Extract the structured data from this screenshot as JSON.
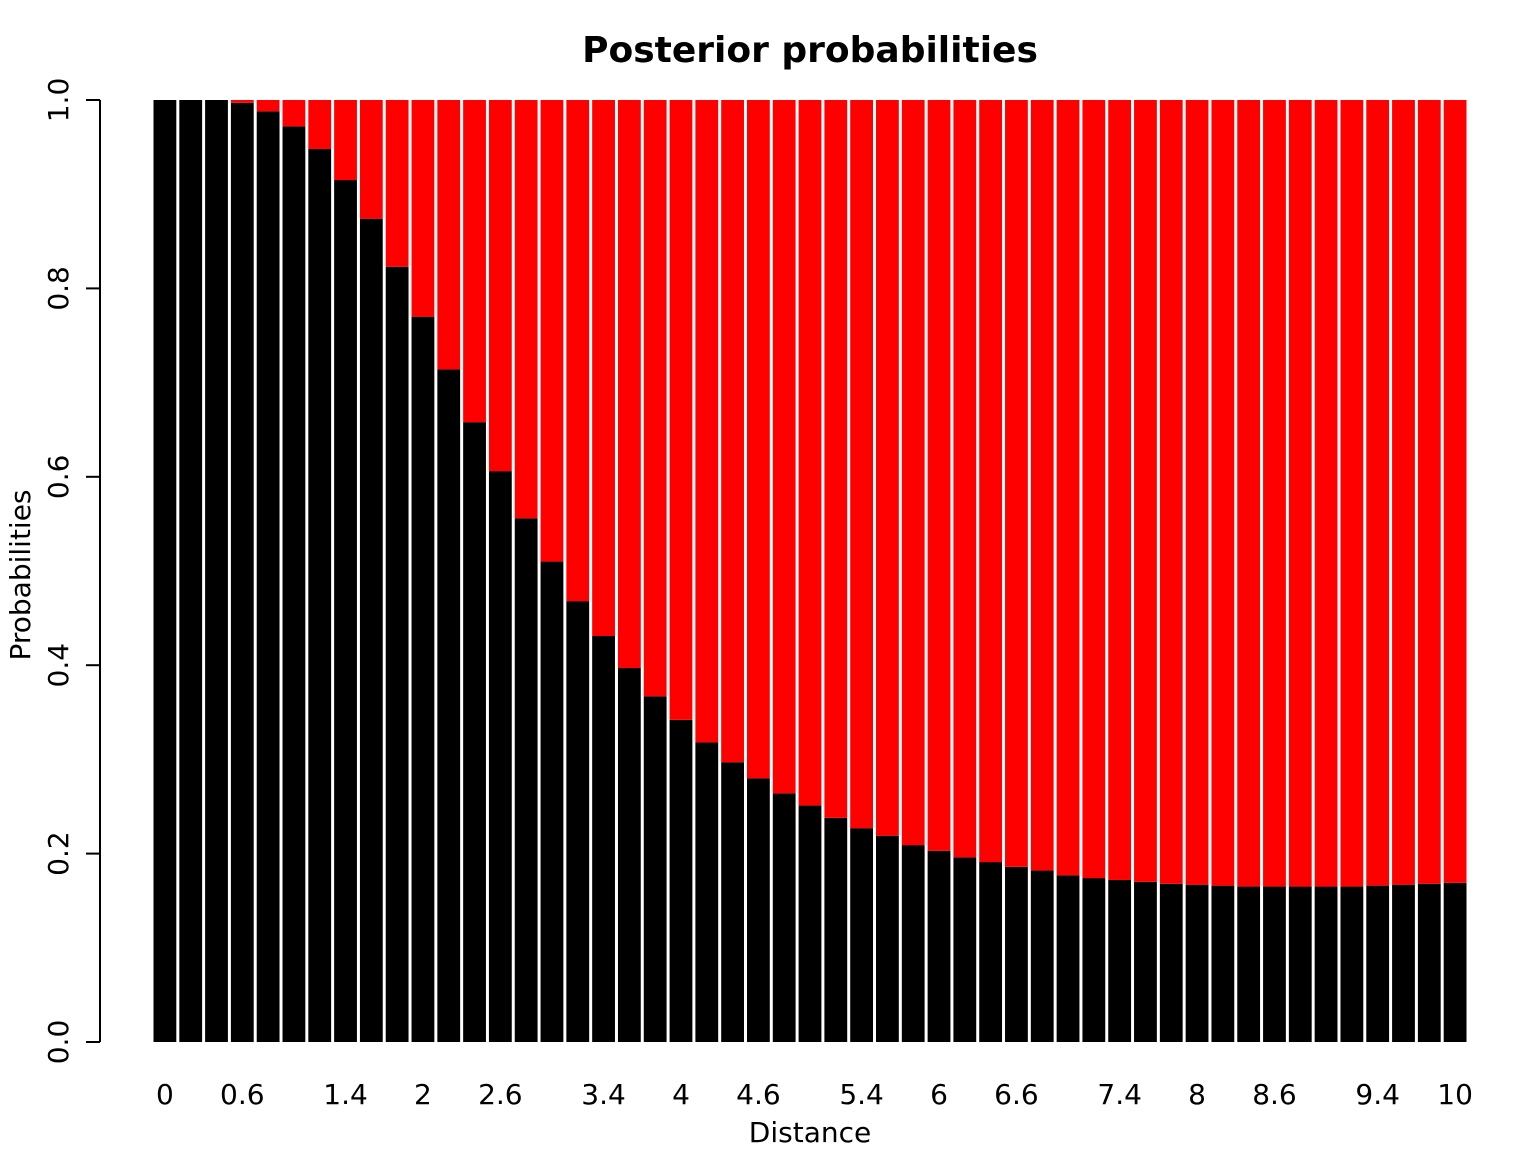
{
  "chart_data": {
    "type": "stacked_bar",
    "title": "Posterior probabilities",
    "x_label": "Distance",
    "y_label": "Probabilities",
    "categories": [
      "0",
      null,
      null,
      "0.6",
      null,
      null,
      null,
      "1.4",
      null,
      null,
      "2",
      null,
      null,
      "2.6",
      null,
      null,
      null,
      "3.4",
      null,
      null,
      "4",
      null,
      null,
      "4.6",
      null,
      null,
      null,
      "5.4",
      null,
      null,
      "6",
      null,
      null,
      "6.6",
      null,
      null,
      null,
      "7.4",
      null,
      null,
      "8",
      null,
      null,
      "8.6",
      null,
      null,
      null,
      "9.4",
      null,
      null,
      "10"
    ],
    "series": [
      {
        "color": "#000000",
        "values": [
          1.0,
          1.0,
          1.0,
          0.997,
          0.988,
          0.972,
          0.948,
          0.915,
          0.874,
          0.823,
          0.77,
          0.714,
          0.658,
          0.606,
          0.556,
          0.51,
          0.468,
          0.431,
          0.397,
          0.367,
          0.342,
          0.318,
          0.297,
          0.28,
          0.264,
          0.251,
          0.238,
          0.227,
          0.219,
          0.209,
          0.203,
          0.196,
          0.191,
          0.186,
          0.182,
          0.177,
          0.174,
          0.172,
          0.17,
          0.168,
          0.167,
          0.166,
          0.165,
          0.165,
          0.165,
          0.165,
          0.165,
          0.166,
          0.167,
          0.168,
          0.169
        ]
      },
      {
        "color": "#ff0000",
        "values": [
          0,
          0,
          0,
          0.003,
          0.012,
          0.028,
          0.052,
          0.085,
          0.126,
          0.177,
          0.23,
          0.286,
          0.342,
          0.394,
          0.444,
          0.49,
          0.532,
          0.569,
          0.603,
          0.633,
          0.658,
          0.682,
          0.703,
          0.72,
          0.736,
          0.749,
          0.762,
          0.773,
          0.781,
          0.791,
          0.797,
          0.804,
          0.809,
          0.814,
          0.818,
          0.823,
          0.826,
          0.828,
          0.83,
          0.832,
          0.833,
          0.834,
          0.835,
          0.835,
          0.835,
          0.835,
          0.835,
          0.834,
          0.833,
          0.832,
          0.831
        ]
      }
    ],
    "ylim": [
      0,
      1
    ],
    "yticks": [
      {
        "value": 0,
        "label": "0.0"
      },
      0.2,
      0.4,
      0.6,
      0.8,
      {
        "value": 1,
        "label": "1.0"
      }
    ],
    "grid": false
  }
}
